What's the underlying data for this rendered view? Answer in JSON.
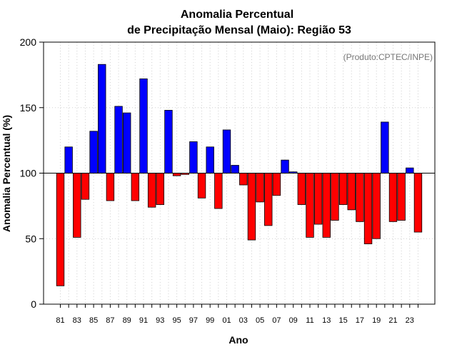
{
  "chart_data": {
    "type": "bar",
    "title_line1": "Anomalia Percentual",
    "title_line2": "de Precipitação Mensal (Maio): Região 53",
    "xlabel": "Ano",
    "ylabel": "Anomalia Percentual (%)",
    "credit": "(Produto:CPTEC/INPE)",
    "ylim": [
      0,
      200
    ],
    "yticks": [
      "0",
      "50",
      "100",
      "150",
      "200"
    ],
    "baseline": 100,
    "grid": true,
    "colors": {
      "above": "#0000ff",
      "below": "#ff0000"
    },
    "categories": [
      "81",
      "82",
      "83",
      "84",
      "85",
      "86",
      "87",
      "88",
      "89",
      "90",
      "91",
      "92",
      "93",
      "94",
      "95",
      "96",
      "97",
      "98",
      "99",
      "00",
      "01",
      "02",
      "03",
      "04",
      "05",
      "06",
      "07",
      "08",
      "09",
      "10",
      "11",
      "12",
      "13",
      "14",
      "15",
      "16",
      "17",
      "18",
      "19",
      "20",
      "21",
      "22",
      "23",
      "24"
    ],
    "xtick_labels": [
      "81",
      "83",
      "85",
      "87",
      "89",
      "91",
      "93",
      "95",
      "97",
      "99",
      "01",
      "03",
      "05",
      "07",
      "09",
      "11",
      "13",
      "15",
      "17",
      "19",
      "21",
      "23"
    ],
    "values": [
      14,
      120,
      51,
      80,
      132,
      183,
      79,
      151,
      146,
      79,
      172,
      74,
      76,
      148,
      98,
      99,
      124,
      81,
      120,
      73,
      133,
      106,
      91,
      49,
      78,
      60,
      83,
      110,
      101,
      76,
      51,
      61,
      51,
      64,
      76,
      72,
      63,
      46,
      50,
      139,
      63,
      64,
      104,
      55
    ]
  }
}
